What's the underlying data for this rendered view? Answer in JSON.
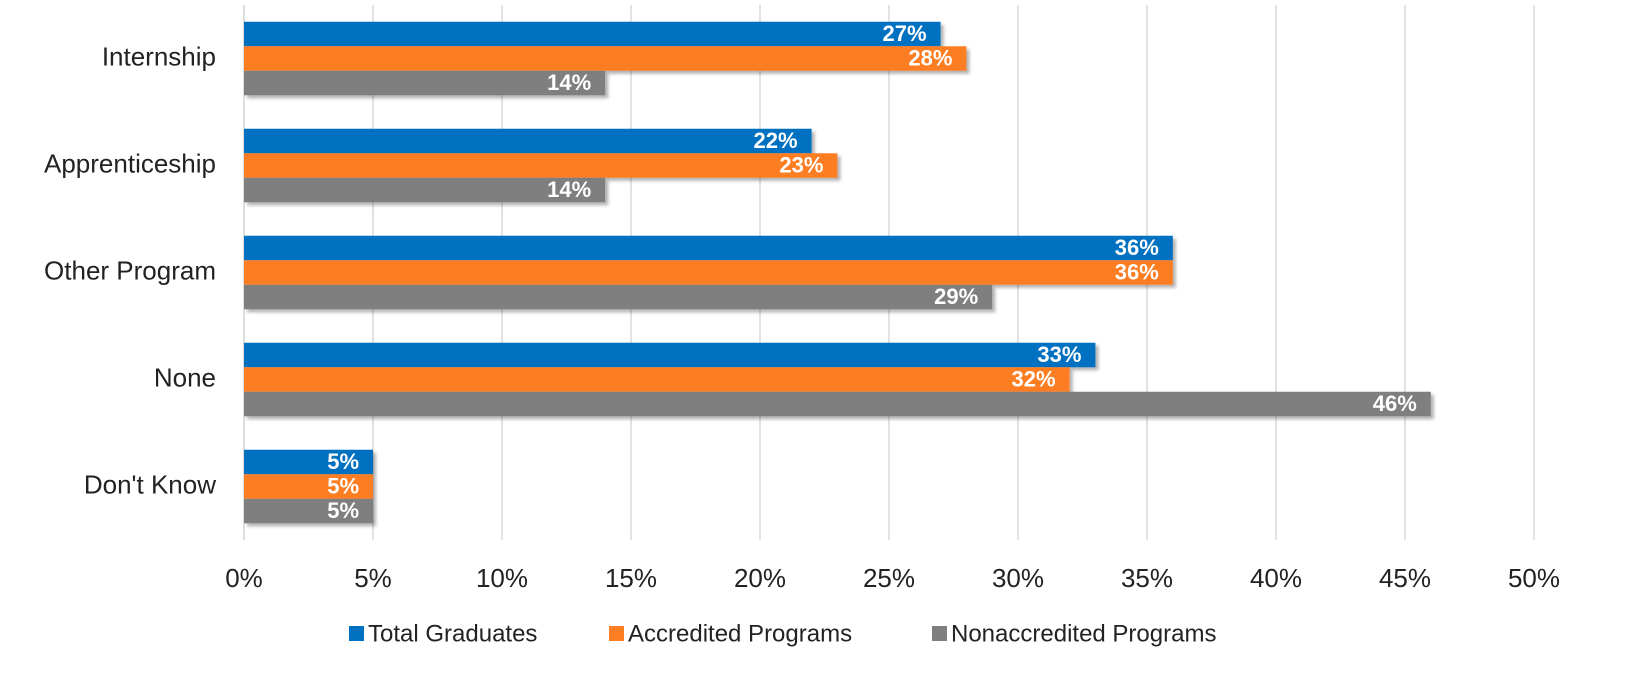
{
  "chart_data": {
    "type": "hbar",
    "categories": [
      "Internship",
      "Apprenticeship",
      "Other Program",
      "None",
      "Don't Know"
    ],
    "series": [
      {
        "name": "Total Graduates",
        "color": "#0070c0",
        "values": [
          27,
          22,
          36,
          33,
          5
        ],
        "value_labels": [
          "27%",
          "22%",
          "36%",
          "33%",
          "5%"
        ]
      },
      {
        "name": "Accredited Programs",
        "color": "#fd7e23",
        "values": [
          28,
          23,
          36,
          32,
          5
        ],
        "value_labels": [
          "28%",
          "23%",
          "36%",
          "32%",
          "5%"
        ]
      },
      {
        "name": "Nonaccredited Programs",
        "color": "#7f7f7f",
        "values": [
          14,
          14,
          29,
          46,
          5
        ],
        "value_labels": [
          "14%",
          "14%",
          "29%",
          "46%",
          "5%"
        ]
      }
    ],
    "xlim": [
      0,
      50
    ],
    "xticks": [
      {
        "value": 0,
        "label": "0%"
      },
      {
        "value": 5,
        "label": "5%"
      },
      {
        "value": 10,
        "label": "10%"
      },
      {
        "value": 15,
        "label": "15%"
      },
      {
        "value": 20,
        "label": "20%"
      },
      {
        "value": 25,
        "label": "25%"
      },
      {
        "value": 30,
        "label": "30%"
      },
      {
        "value": 35,
        "label": "35%"
      },
      {
        "value": 40,
        "label": "40%"
      },
      {
        "value": 45,
        "label": "45%"
      },
      {
        "value": 50,
        "label": "50%"
      }
    ],
    "grid": true,
    "legend": "bottom"
  }
}
